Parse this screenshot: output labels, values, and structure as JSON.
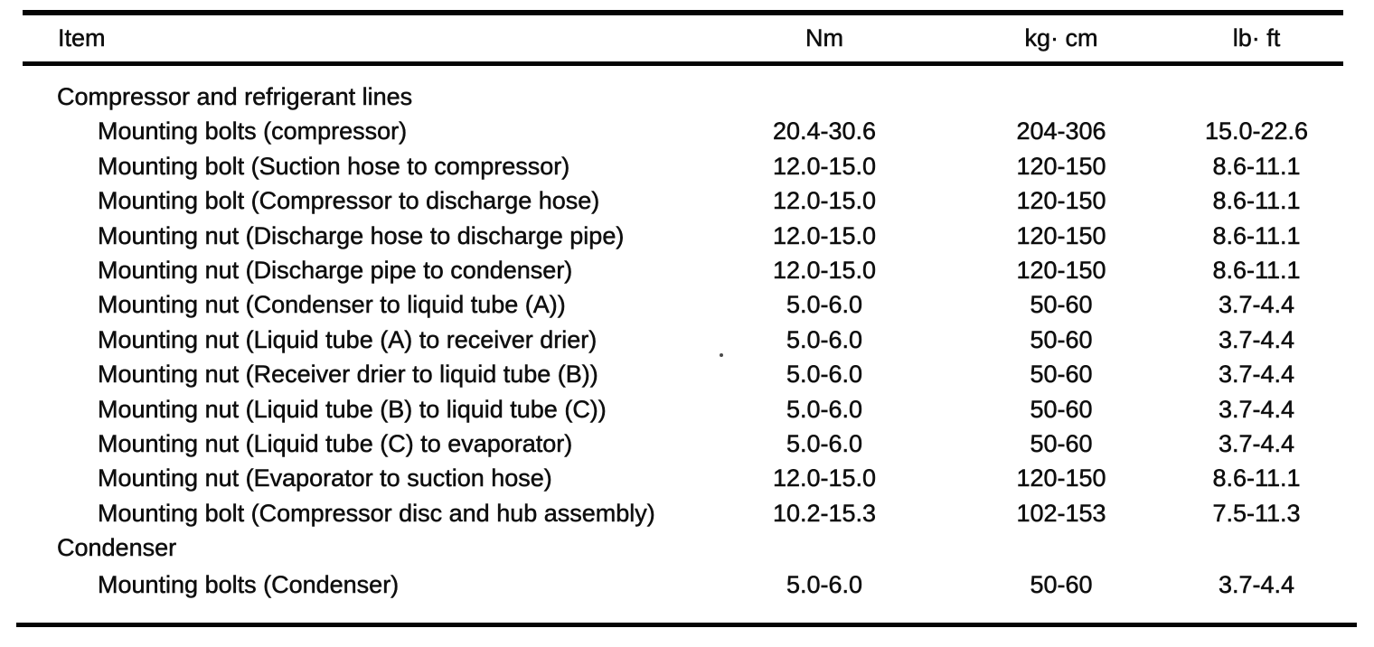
{
  "colors": {
    "background": "#ffffff",
    "text": "#0e0e0e",
    "rule": "#050505"
  },
  "table": {
    "columns": [
      "Item",
      "Nm",
      "kg· cm",
      "lb· ft"
    ],
    "sections": [
      {
        "title": "Compressor and refrigerant lines",
        "rows": [
          {
            "item": "Mounting bolts (compressor)",
            "nm": "20.4-30.6",
            "kg_cm": "204-306",
            "lb_ft": "15.0-22.6"
          },
          {
            "item": "Mounting bolt (Suction hose to compressor)",
            "nm": "12.0-15.0",
            "kg_cm": "120-150",
            "lb_ft": "8.6-11.1"
          },
          {
            "item": "Mounting bolt (Compressor to discharge hose)",
            "nm": "12.0-15.0",
            "kg_cm": "120-150",
            "lb_ft": "8.6-11.1"
          },
          {
            "item": "Mounting nut (Discharge hose to discharge pipe)",
            "nm": "12.0-15.0",
            "kg_cm": "120-150",
            "lb_ft": "8.6-11.1"
          },
          {
            "item": "Mounting nut (Discharge pipe to condenser)",
            "nm": "12.0-15.0",
            "kg_cm": "120-150",
            "lb_ft": "8.6-11.1"
          },
          {
            "item": "Mounting nut (Condenser to liquid tube (A))",
            "nm": "5.0-6.0",
            "kg_cm": "50-60",
            "lb_ft": "3.7-4.4"
          },
          {
            "item": "Mounting nut (Liquid tube (A) to receiver drier)",
            "nm": "5.0-6.0",
            "kg_cm": "50-60",
            "lb_ft": "3.7-4.4"
          },
          {
            "item": "Mounting nut (Receiver drier to liquid tube (B))",
            "nm": "5.0-6.0",
            "kg_cm": "50-60",
            "lb_ft": "3.7-4.4"
          },
          {
            "item": "Mounting nut (Liquid tube (B) to liquid tube (C))",
            "nm": "5.0-6.0",
            "kg_cm": "50-60",
            "lb_ft": "3.7-4.4"
          },
          {
            "item": "Mounting nut (Liquid tube (C) to evaporator)",
            "nm": "5.0-6.0",
            "kg_cm": "50-60",
            "lb_ft": "3.7-4.4"
          },
          {
            "item": "Mounting nut (Evaporator to suction hose)",
            "nm": "12.0-15.0",
            "kg_cm": "120-150",
            "lb_ft": "8.6-11.1"
          },
          {
            "item": "Mounting bolt (Compressor disc and hub assembly)",
            "nm": "10.2-15.3",
            "kg_cm": "102-153",
            "lb_ft": "7.5-11.3"
          }
        ]
      },
      {
        "title": "Condenser",
        "rows": [
          {
            "item": "Mounting bolts (Condenser)",
            "nm": "5.0-6.0",
            "kg_cm": "50-60",
            "lb_ft": "3.7-4.4"
          }
        ]
      }
    ]
  }
}
